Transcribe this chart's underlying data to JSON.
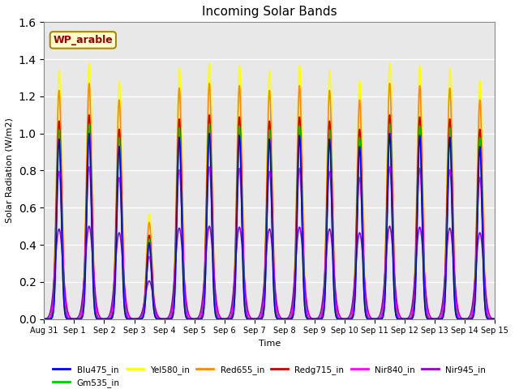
{
  "title": "Incoming Solar Bands",
  "xlabel": "Time",
  "ylabel": "Solar Radiation (W/m2)",
  "ylim": [
    0,
    1.6
  ],
  "annotation": "WP_arable",
  "series": {
    "Yel580_in": {
      "color": "#ffff00",
      "lw": 1.2,
      "peak": 1.38,
      "sigma": 0.09
    },
    "Red655_in": {
      "color": "#ff8800",
      "lw": 1.2,
      "peak": 1.27,
      "sigma": 0.09
    },
    "Redg715_in": {
      "color": "#cc0000",
      "lw": 1.2,
      "peak": 1.1,
      "sigma": 0.09
    },
    "Gm535_in": {
      "color": "#00cc00",
      "lw": 1.2,
      "peak": 1.05,
      "sigma": 0.075
    },
    "Blu475_in": {
      "color": "#0000ff",
      "lw": 1.2,
      "peak": 1.0,
      "sigma": 0.075
    },
    "Nir840_in": {
      "color": "#ff00ff",
      "lw": 1.2,
      "peak": 0.82,
      "sigma": 0.1
    },
    "Nir945_in": {
      "color": "#9900cc",
      "lw": 1.2,
      "peak": 0.5,
      "sigma": 0.13
    }
  },
  "x_tick_labels": [
    "Aug 31",
    "Sep 1",
    "Sep 2",
    "Sep 3",
    "Sep 4",
    "Sep 5",
    "Sep 6",
    "Sep 7",
    "Sep 8",
    "Sep 9",
    "Sep 10",
    "Sep 11",
    "Sep 12",
    "Sep 13",
    "Sep 14",
    "Sep 15"
  ],
  "n_days": 15,
  "points_per_day": 200,
  "cloudy_day": 3,
  "cloudy_scale": 0.41,
  "peak_variations": [
    0.97,
    1.0,
    0.93,
    0.41,
    0.98,
    1.0,
    0.99,
    0.97,
    0.99,
    0.97,
    0.93,
    1.0,
    0.99,
    0.98,
    0.93
  ],
  "background_color": "#e8e8e8",
  "grid_color": "#ffffff",
  "fig_facecolor": "#ffffff",
  "legend_names": [
    "Blu475_in",
    "Gm535_in",
    "Yel580_in",
    "Red655_in",
    "Redg715_in",
    "Nir840_in",
    "Nir945_in"
  ]
}
